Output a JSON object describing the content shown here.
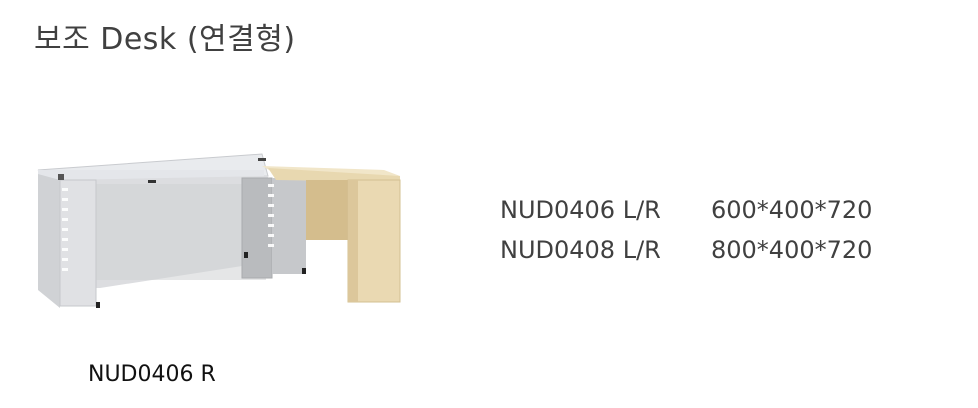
{
  "page": {
    "title": "보조 Desk (연결형)"
  },
  "specs": [
    {
      "code": "NUD0406 L/R",
      "dimensions": "600*400*720"
    },
    {
      "code": "NUD0408 L/R",
      "dimensions": "800*400*720"
    }
  ],
  "figure": {
    "caption": "NUD0406 R",
    "colors": {
      "desk_top": "#e4e6ea",
      "desk_panel": "#c8cacd",
      "wood": "#e8d8b0",
      "wood_side": "#d8c499"
    }
  }
}
